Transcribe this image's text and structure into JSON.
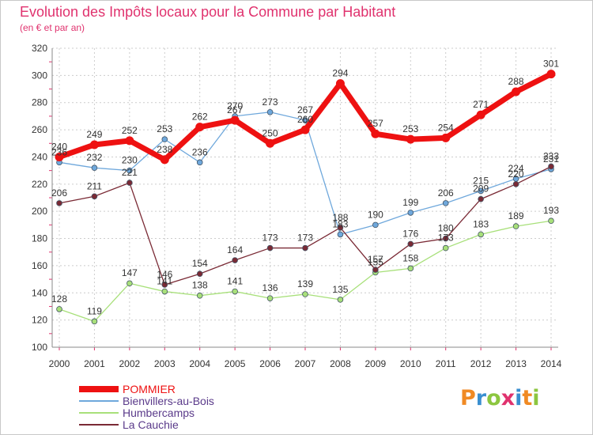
{
  "title": "Evolution des Impôts locaux pour la Commune par Habitant",
  "subtitle": "(en € et par an)",
  "logo": {
    "text": "Proxiti",
    "letter_colors": [
      "#f08a24",
      "#3a8fd0",
      "#8cc63f",
      "#e0326e",
      "#3a8fd0",
      "#f08a24",
      "#8cc63f"
    ]
  },
  "chart_data": {
    "type": "line",
    "title": "Evolution des Impôts locaux pour la Commune par Habitant",
    "subtitle": "(en € et par an)",
    "x": [
      "2000",
      "2001",
      "2002",
      "2003",
      "2004",
      "2005",
      "2006",
      "2007",
      "2008",
      "2009",
      "2010",
      "2011",
      "2012",
      "2013",
      "2014"
    ],
    "ylim": [
      100,
      320
    ],
    "yticks": [
      "100",
      "120",
      "140",
      "160",
      "180",
      "200",
      "220",
      "240",
      "260",
      "280",
      "300",
      "320"
    ],
    "grid": true,
    "legend_position": "bottom-left",
    "series": [
      {
        "name": "POMMIER",
        "color": "#ee1111",
        "values": [
          240,
          249,
          252,
          238,
          262,
          267,
          250,
          260,
          294,
          257,
          253,
          254,
          271,
          288,
          301
        ],
        "labels": [
          "240",
          "249",
          "252",
          "238",
          "262",
          "267",
          "250",
          "260",
          "294",
          "257",
          "253",
          "254",
          "271",
          "288",
          "301"
        ]
      },
      {
        "name": "Bienvillers-au-Bois",
        "color": "#6fa8dc",
        "values": [
          236,
          232,
          230,
          253,
          236,
          270,
          273,
          267,
          183,
          190,
          199,
          206,
          215,
          224,
          231
        ],
        "labels": [
          "236",
          "232",
          "230",
          "253",
          "236",
          "270",
          "273",
          "267",
          "183",
          "190",
          "199",
          "206",
          "215",
          "224",
          "231"
        ]
      },
      {
        "name": "Humbercamps",
        "color": "#a8e07a",
        "values": [
          128,
          119,
          147,
          141,
          138,
          141,
          136,
          139,
          135,
          155,
          158,
          173,
          183,
          189,
          193
        ],
        "labels": [
          "128",
          "119",
          "147",
          "141",
          "138",
          "141",
          "136",
          "139",
          "135",
          "155",
          "158",
          "173",
          "183",
          "189",
          "193"
        ]
      },
      {
        "name": "La Cauchie",
        "color": "#7a2a35",
        "values": [
          206,
          211,
          221,
          146,
          154,
          164,
          173,
          173,
          188,
          157,
          176,
          180,
          209,
          220,
          233
        ],
        "labels": [
          "206",
          "211",
          "221",
          "146",
          "154",
          "164",
          "173",
          "173",
          "188",
          "157",
          "176",
          "180",
          "209",
          "220",
          "233"
        ]
      }
    ]
  }
}
